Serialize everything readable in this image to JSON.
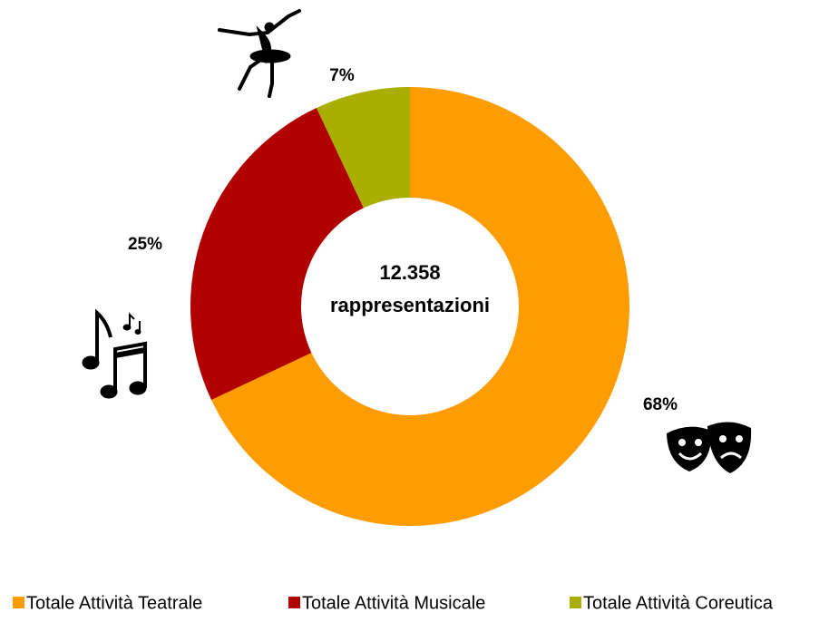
{
  "chart_data": {
    "type": "donut",
    "center_text": [
      "12.358",
      "rappresentazioni"
    ],
    "categories": [
      "Totale Attività Teatrale",
      "Totale Attività Musicale",
      "Totale Attività Coreutica"
    ],
    "values": [
      68,
      25,
      7
    ],
    "value_labels": [
      "68%",
      "25%",
      "7%"
    ],
    "colors": [
      "#ff9c00",
      "#b00000",
      "#a9ae00"
    ],
    "legend": "bottom"
  }
}
